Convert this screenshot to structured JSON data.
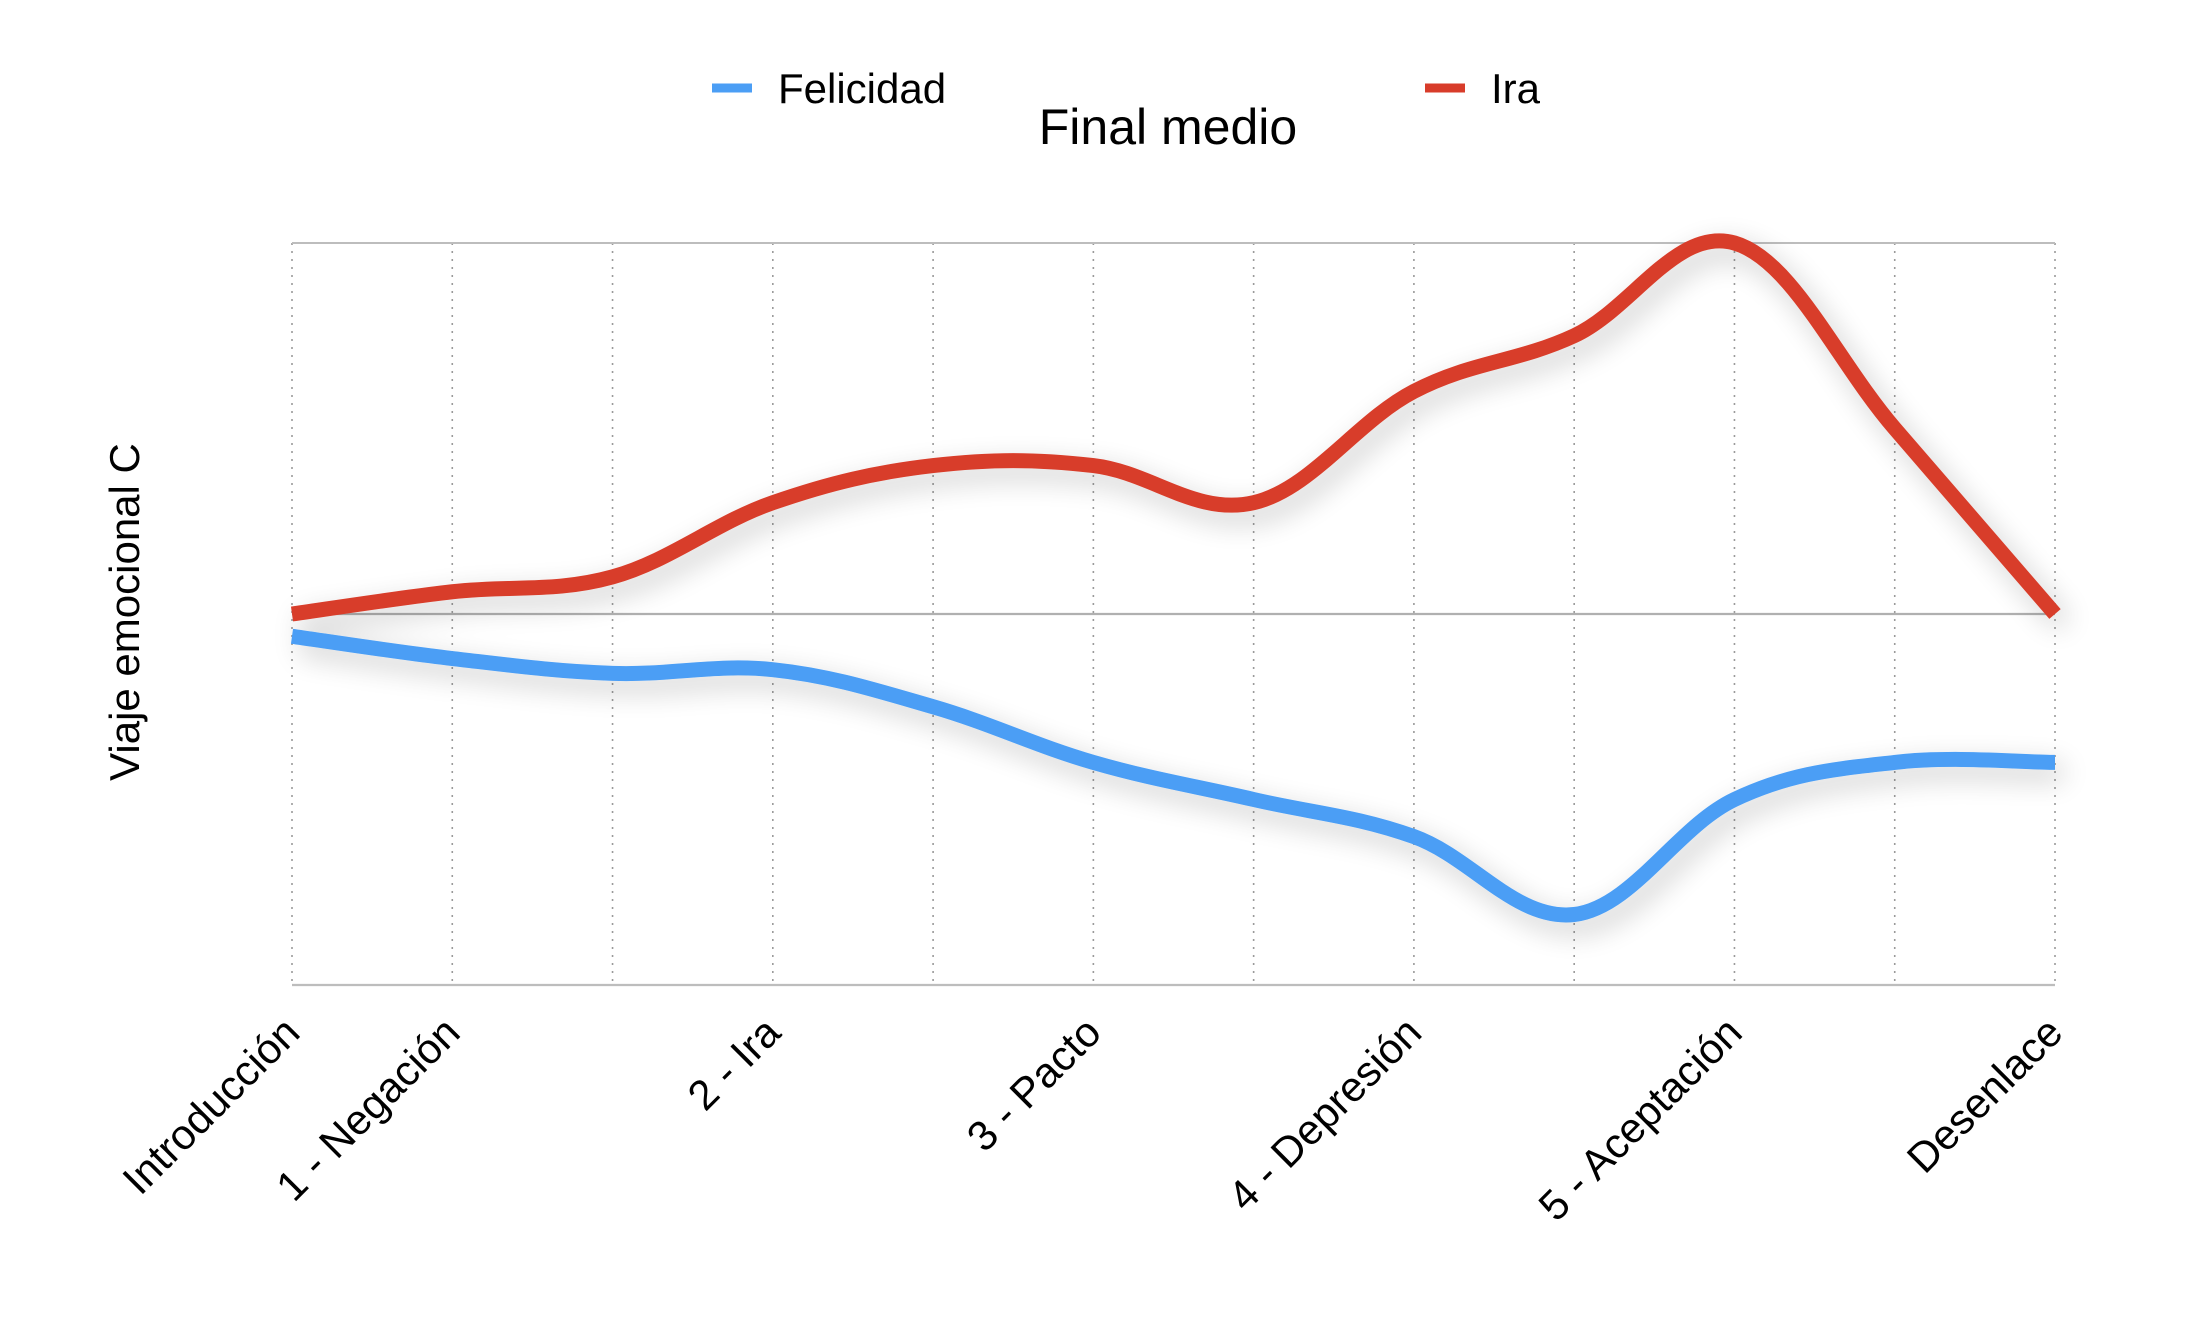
{
  "chart_data": {
    "type": "line",
    "title": "Final medio",
    "xlabel": "",
    "ylabel": "Viaje emocional C",
    "x": [
      0,
      1,
      2,
      3,
      4,
      5,
      6,
      7,
      8,
      9,
      10,
      11
    ],
    "tick_labels": [
      {
        "x": 0,
        "label": "Introducción"
      },
      {
        "x": 1,
        "label": "1 - Negación"
      },
      {
        "x": 3,
        "label": "2 - Ira"
      },
      {
        "x": 5,
        "label": "3 - Pacto"
      },
      {
        "x": 7,
        "label": "4 - Depresión"
      },
      {
        "x": 9,
        "label": "5 - Aceptación"
      },
      {
        "x": 11,
        "label": "Desenlace"
      }
    ],
    "xlim": [
      0,
      11
    ],
    "ylim": [
      -10,
      10
    ],
    "grid": true,
    "legend_position": "top",
    "series": [
      {
        "name": "Felicidad",
        "color": "#4b9ef5",
        "values": [
          -0.6,
          -1.2,
          -1.6,
          -1.5,
          -2.5,
          -4.0,
          -5.0,
          -6.0,
          -8.1,
          -5.0,
          -4.0,
          -4.0
        ]
      },
      {
        "name": "Ira",
        "color": "#d83c2a",
        "values": [
          0.0,
          0.6,
          1.0,
          3.0,
          4.0,
          4.0,
          3.0,
          6.0,
          7.5,
          10.0,
          5.0,
          0.0
        ]
      }
    ]
  }
}
